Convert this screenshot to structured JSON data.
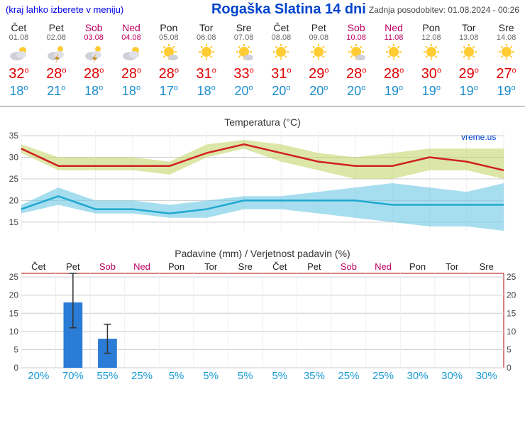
{
  "menu_hint": "(kraj lahko izberete v meniju)",
  "title": "Rogaška Slatina 14 dni",
  "updated_label": "Zadnja posodobitev: 01.08.2024 - 00:26",
  "weekend_color": "#c00060",
  "high_color": "#e00000",
  "low_color": "#1a8ccc",
  "days": [
    {
      "name": "Čet",
      "date": "01.08",
      "icon": "sun-cloud",
      "high": 32,
      "low": 18,
      "weekend": false
    },
    {
      "name": "Pet",
      "date": "02.08",
      "icon": "storm",
      "high": 28,
      "low": 21,
      "weekend": false
    },
    {
      "name": "Sob",
      "date": "03.08",
      "icon": "storm",
      "high": 28,
      "low": 18,
      "weekend": true
    },
    {
      "name": "Ned",
      "date": "04.08",
      "icon": "cloud-sun",
      "high": 28,
      "low": 18,
      "weekend": true
    },
    {
      "name": "Pon",
      "date": "05.08",
      "icon": "sun-sm-cloud",
      "high": 28,
      "low": 17,
      "weekend": false
    },
    {
      "name": "Tor",
      "date": "06.08",
      "icon": "sun",
      "high": 31,
      "low": 18,
      "weekend": false
    },
    {
      "name": "Sre",
      "date": "07.08",
      "icon": "sun-sm-cloud",
      "high": 33,
      "low": 20,
      "weekend": false
    },
    {
      "name": "Čet",
      "date": "08.08",
      "icon": "sun",
      "high": 31,
      "low": 20,
      "weekend": false
    },
    {
      "name": "Pet",
      "date": "09.08",
      "icon": "sun",
      "high": 29,
      "low": 20,
      "weekend": false
    },
    {
      "name": "Sob",
      "date": "10.08",
      "icon": "sun-sm-cloud",
      "high": 28,
      "low": 20,
      "weekend": true
    },
    {
      "name": "Ned",
      "date": "11.08",
      "icon": "sun",
      "high": 28,
      "low": 19,
      "weekend": true
    },
    {
      "name": "Pon",
      "date": "12.08",
      "icon": "sun",
      "high": 30,
      "low": 19,
      "weekend": false
    },
    {
      "name": "Tor",
      "date": "13.08",
      "icon": "sun",
      "high": 29,
      "low": 19,
      "weekend": false
    },
    {
      "name": "Sre",
      "date": "14.08",
      "icon": "sun",
      "high": 27,
      "low": 19,
      "weekend": false
    }
  ],
  "temp_chart": {
    "title": "Temperatura (°C)",
    "brand": "vreme.us",
    "ymin": 13,
    "ymax": 36,
    "yticks": [
      15,
      20,
      25,
      30,
      35
    ],
    "grid_color": "#cccccc",
    "high_line_color": "#d02020",
    "high_band_color": "#c5d66a",
    "low_line_color": "#20a8d0",
    "low_band_color": "#6cc8e5",
    "high": [
      32,
      28,
      28,
      28,
      28,
      31,
      33,
      31,
      29,
      28,
      28,
      30,
      29,
      27
    ],
    "high_up": [
      33,
      30,
      30,
      30,
      29,
      33,
      34,
      33,
      31,
      30,
      31,
      32,
      32,
      32
    ],
    "high_dn": [
      31,
      27,
      27,
      27,
      26,
      30,
      32,
      29,
      27,
      25,
      25,
      27,
      27,
      25
    ],
    "low": [
      18,
      21,
      18,
      18,
      17,
      18,
      20,
      20,
      20,
      20,
      19,
      19,
      19,
      19
    ],
    "low_up": [
      19,
      23,
      20,
      20,
      19,
      20,
      21,
      21,
      22,
      23,
      24,
      23,
      22,
      24
    ],
    "low_dn": [
      17,
      19,
      17,
      17,
      16,
      16,
      18,
      18,
      17,
      16,
      15,
      14,
      14,
      13
    ]
  },
  "precip_chart": {
    "title": "Padavine (mm) / Verjetnost padavin (%)",
    "ymin": 0,
    "ymax": 26,
    "yticks": [
      0,
      5,
      10,
      15,
      20,
      25
    ],
    "grid_color": "#cccccc",
    "bar_color": "#2a7cd6",
    "err_color": "#333333",
    "days": [
      "Čet",
      "Pet",
      "Sob",
      "Ned",
      "Pon",
      "Tor",
      "Sre",
      "Čet",
      "Pet",
      "Sob",
      "Ned",
      "Pon",
      "Tor",
      "Sre"
    ],
    "weekend": [
      false,
      false,
      true,
      true,
      false,
      false,
      false,
      false,
      false,
      true,
      true,
      false,
      false,
      false
    ],
    "mm": [
      0,
      18,
      8,
      0,
      0,
      0,
      0,
      0,
      0,
      0,
      0,
      0,
      0,
      0
    ],
    "mm_up": [
      0,
      26,
      12,
      0,
      0,
      0,
      0,
      0,
      0,
      0,
      0,
      0,
      0,
      0
    ],
    "mm_dn": [
      0,
      11,
      4,
      0,
      0,
      0,
      0,
      0,
      0,
      0,
      0,
      0,
      0,
      0
    ],
    "pct": [
      20,
      70,
      55,
      25,
      5,
      5,
      5,
      5,
      35,
      25,
      25,
      30,
      30,
      30
    ],
    "pct_color": "#1a9ad5"
  }
}
